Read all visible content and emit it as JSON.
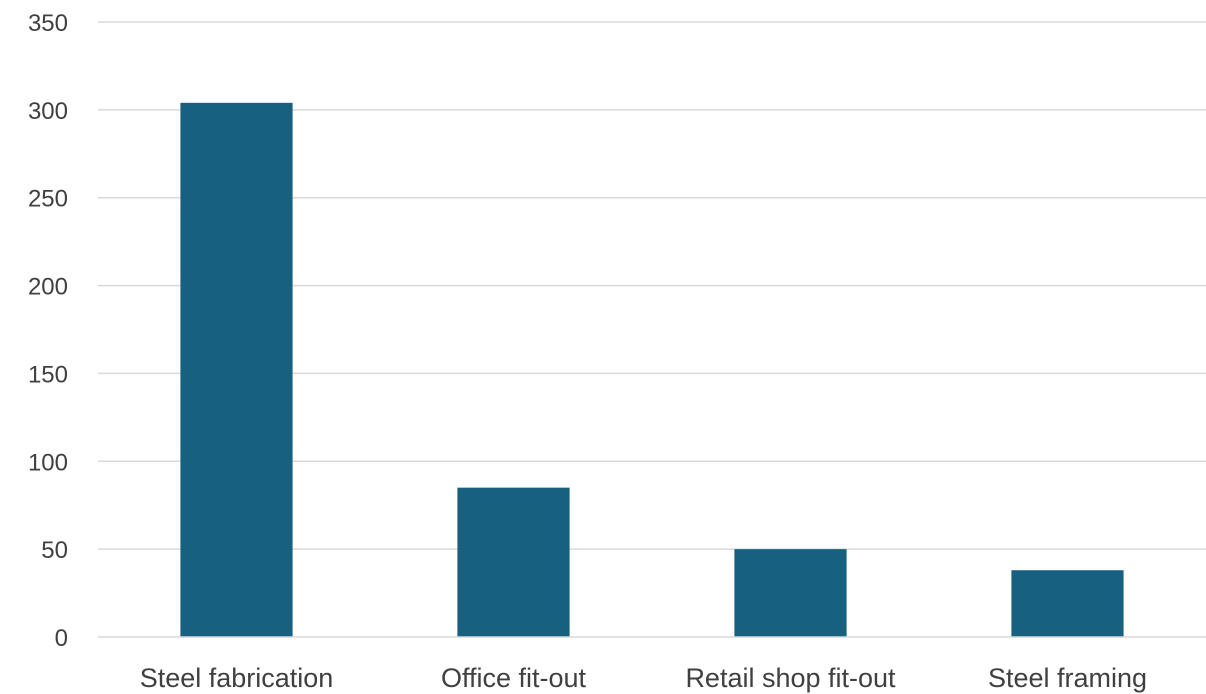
{
  "chart_data": {
    "type": "bar",
    "title": "",
    "xlabel": "",
    "ylabel": "",
    "categories": [
      "Steel fabrication",
      "Office fit-out",
      "Retail shop fit-out",
      "Steel framing"
    ],
    "series": [
      {
        "values": [
          304,
          85,
          50,
          38
        ]
      }
    ],
    "ylim": [
      0,
      350
    ],
    "yticks": [
      0,
      50,
      100,
      150,
      200,
      250,
      300,
      350
    ],
    "grid": true,
    "legend": "none",
    "colors": {
      "bar": "#17607f"
    }
  }
}
